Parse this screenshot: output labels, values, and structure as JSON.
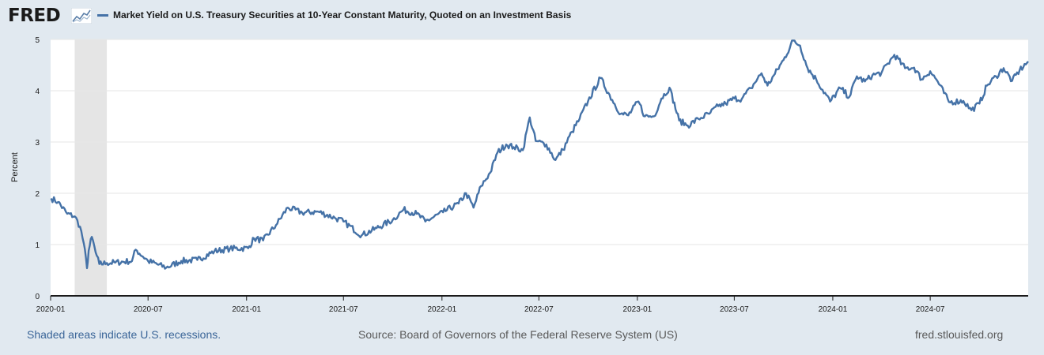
{
  "brand": "FRED",
  "logo_icon": "trend-chart-icon",
  "footer": {
    "recessions": "Shaded areas indicate U.S. recessions.",
    "source": "Source: Board of Governors of the Federal Reserve System (US)",
    "url": "fred.stlouisfed.org"
  },
  "colors": {
    "line": "#4572a7",
    "recession": "#e5e5e5",
    "background": "#e1e9f0",
    "plot": "#ffffff"
  },
  "chart_data": {
    "type": "line",
    "title": "Market Yield on U.S. Treasury Securities at 10-Year Constant Maturity, Quoted on an Investment Basis",
    "xlabel": "",
    "ylabel": "Percent",
    "ylim": [
      0,
      5
    ],
    "yticks": [
      "0",
      "1",
      "2",
      "3",
      "4",
      "5"
    ],
    "xtick_labels": [
      "2020-01",
      "2020-07",
      "2021-01",
      "2021-07",
      "2022-01",
      "2022-07",
      "2023-01",
      "2023-07",
      "2024-01",
      "2024-07"
    ],
    "xlim": [
      "2020-01-01",
      "2024-12-31"
    ],
    "grid": "horizontal",
    "legend": "top-left",
    "recessions": [
      [
        "2020-02-15",
        "2020-04-15"
      ]
    ],
    "series": [
      {
        "name": "Market Yield on U.S. Treasury Securities at 10-Year Constant Maturity, Quoted on an Investment Basis",
        "x": [
          "2020-01-02",
          "2020-01-15",
          "2020-02-01",
          "2020-02-15",
          "2020-02-25",
          "2020-03-03",
          "2020-03-09",
          "2020-03-12",
          "2020-03-18",
          "2020-03-25",
          "2020-04-01",
          "2020-04-15",
          "2020-05-01",
          "2020-06-01",
          "2020-06-08",
          "2020-07-01",
          "2020-08-04",
          "2020-09-01",
          "2020-10-01",
          "2020-11-02",
          "2020-12-01",
          "2021-01-04",
          "2021-01-15",
          "2021-02-01",
          "2021-02-25",
          "2021-03-19",
          "2021-04-15",
          "2021-05-15",
          "2021-06-15",
          "2021-07-01",
          "2021-08-04",
          "2021-09-01",
          "2021-10-01",
          "2021-10-21",
          "2021-11-15",
          "2021-12-01",
          "2022-01-03",
          "2022-02-01",
          "2022-02-15",
          "2022-03-01",
          "2022-03-15",
          "2022-04-01",
          "2022-04-15",
          "2022-05-01",
          "2022-05-15",
          "2022-06-01",
          "2022-06-14",
          "2022-06-25",
          "2022-07-15",
          "2022-08-01",
          "2022-08-15",
          "2022-09-01",
          "2022-09-15",
          "2022-10-01",
          "2022-10-24",
          "2022-11-15",
          "2022-12-01",
          "2022-12-15",
          "2023-01-03",
          "2023-01-15",
          "2023-02-01",
          "2023-02-15",
          "2023-03-02",
          "2023-03-20",
          "2023-04-05",
          "2023-04-25",
          "2023-05-15",
          "2023-06-01",
          "2023-06-15",
          "2023-07-01",
          "2023-07-15",
          "2023-08-01",
          "2023-08-21",
          "2023-09-01",
          "2023-09-15",
          "2023-10-01",
          "2023-10-19",
          "2023-11-01",
          "2023-11-15",
          "2023-12-01",
          "2023-12-27",
          "2024-01-15",
          "2024-02-01",
          "2024-02-15",
          "2024-03-01",
          "2024-03-15",
          "2024-04-01",
          "2024-04-25",
          "2024-05-15",
          "2024-06-01",
          "2024-06-15",
          "2024-07-01",
          "2024-07-15",
          "2024-08-05",
          "2024-09-01",
          "2024-09-16",
          "2024-10-01",
          "2024-10-15",
          "2024-11-01",
          "2024-11-15",
          "2024-12-01",
          "2024-12-15",
          "2024-12-31"
        ],
        "values": [
          1.9,
          1.83,
          1.6,
          1.55,
          1.35,
          1.02,
          0.54,
          0.88,
          1.15,
          0.85,
          0.62,
          0.64,
          0.65,
          0.68,
          0.9,
          0.68,
          0.55,
          0.68,
          0.7,
          0.87,
          0.92,
          0.93,
          1.12,
          1.08,
          1.38,
          1.72,
          1.62,
          1.64,
          1.52,
          1.45,
          1.18,
          1.32,
          1.48,
          1.68,
          1.6,
          1.45,
          1.63,
          1.8,
          2.0,
          1.72,
          2.14,
          2.4,
          2.8,
          2.95,
          2.9,
          2.84,
          3.48,
          3.02,
          2.95,
          2.65,
          2.85,
          3.2,
          3.45,
          3.8,
          4.25,
          3.82,
          3.55,
          3.52,
          3.79,
          3.5,
          3.5,
          3.85,
          4.06,
          3.42,
          3.32,
          3.45,
          3.55,
          3.7,
          3.75,
          3.85,
          3.84,
          4.05,
          4.34,
          4.1,
          4.33,
          4.6,
          4.98,
          4.88,
          4.44,
          4.22,
          3.79,
          4.05,
          3.88,
          4.28,
          4.18,
          4.3,
          4.35,
          4.7,
          4.44,
          4.45,
          4.22,
          4.38,
          4.18,
          3.78,
          3.8,
          3.62,
          3.75,
          4.1,
          4.28,
          4.44,
          4.19,
          4.4,
          4.57
        ]
      }
    ]
  }
}
